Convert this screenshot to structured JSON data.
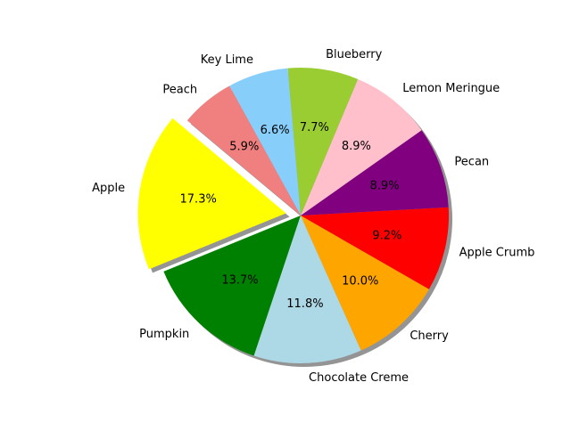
{
  "chart_data": {
    "type": "pie",
    "slices": [
      {
        "label": "Apple",
        "percent_label": "17.3%",
        "value": 17.3,
        "color": "#ffff00",
        "exploded": true
      },
      {
        "label": "Pumpkin",
        "percent_label": "13.7%",
        "value": 13.7,
        "color": "#008000",
        "exploded": false
      },
      {
        "label": "Chocolate Creme",
        "percent_label": "11.8%",
        "value": 11.8,
        "color": "#add8e6",
        "exploded": false
      },
      {
        "label": "Cherry",
        "percent_label": "10.0%",
        "value": 10.0,
        "color": "#ffa500",
        "exploded": false
      },
      {
        "label": "Apple Crumb",
        "percent_label": "9.2%",
        "value": 9.2,
        "color": "#ff0000",
        "exploded": false
      },
      {
        "label": "Pecan",
        "percent_label": "8.9%",
        "value": 8.9,
        "color": "#800080",
        "exploded": false
      },
      {
        "label": "Lemon Meringue",
        "percent_label": "8.9%",
        "value": 8.9,
        "color": "#ffc0cb",
        "exploded": false
      },
      {
        "label": "Blueberry",
        "percent_label": "7.7%",
        "value": 7.7,
        "color": "#9acd32",
        "exploded": false
      },
      {
        "label": "Key Lime",
        "percent_label": "6.6%",
        "value": 6.6,
        "color": "#87cefa",
        "exploded": false
      },
      {
        "label": "Peach",
        "percent_label": "5.9%",
        "value": 5.9,
        "color": "#f08080",
        "exploded": false
      }
    ],
    "start_angle_deg": 140,
    "direction": "counterclockwise",
    "shadow": true,
    "title": "",
    "legend": false
  }
}
